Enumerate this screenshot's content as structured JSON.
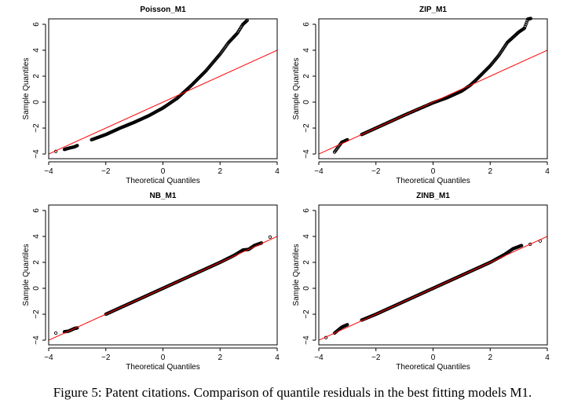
{
  "chart_data": [
    {
      "type": "scatter",
      "title": "Poisson_M1",
      "xlabel": "Theoretical Quantiles",
      "ylabel": "Sample Quantiles",
      "xlim": [
        -4,
        4
      ],
      "ylim": [
        -4.36,
        6.42
      ],
      "xticks": [
        -4,
        -2,
        0,
        2,
        4
      ],
      "yticks": [
        -4,
        -2,
        0,
        2,
        4,
        6
      ],
      "reference_line": {
        "color": "#ff0000",
        "slope": 1,
        "intercept": 0
      },
      "points": [
        [
          -3.75,
          -3.8
        ],
        [
          -3.45,
          -3.65
        ],
        [
          -3.3,
          -3.55
        ],
        [
          -3.1,
          -3.45
        ],
        [
          -3.0,
          -3.35
        ],
        [
          -2.5,
          -2.9
        ],
        [
          -2.0,
          -2.5
        ],
        [
          -1.5,
          -2.0
        ],
        [
          -1.0,
          -1.55
        ],
        [
          -0.5,
          -1.05
        ],
        [
          0,
          -0.45
        ],
        [
          0.5,
          0.3
        ],
        [
          1.0,
          1.3
        ],
        [
          1.5,
          2.4
        ],
        [
          2.0,
          3.7
        ],
        [
          2.3,
          4.6
        ],
        [
          2.6,
          5.3
        ],
        [
          2.8,
          6.0
        ],
        [
          2.95,
          6.3
        ]
      ]
    },
    {
      "type": "scatter",
      "title": "ZIP_M1",
      "xlabel": "Theoretical Quantiles",
      "ylabel": "Sample Quantiles",
      "xlim": [
        -4,
        4
      ],
      "ylim": [
        -4.36,
        6.42
      ],
      "xticks": [
        -4,
        -2,
        0,
        2,
        4
      ],
      "yticks": [
        -4,
        -2,
        0,
        2,
        4,
        6
      ],
      "reference_line": {
        "color": "#ff0000",
        "slope": 1,
        "intercept": 0
      },
      "points": [
        [
          -3.45,
          -3.85
        ],
        [
          -3.2,
          -3.1
        ],
        [
          -3.0,
          -2.9
        ],
        [
          -2.5,
          -2.5
        ],
        [
          -2.0,
          -2.0
        ],
        [
          -1.0,
          -1.0
        ],
        [
          0,
          -0.05
        ],
        [
          0.5,
          0.35
        ],
        [
          1.0,
          0.85
        ],
        [
          1.3,
          1.3
        ],
        [
          1.5,
          1.7
        ],
        [
          2.0,
          2.8
        ],
        [
          2.3,
          3.6
        ],
        [
          2.6,
          4.6
        ],
        [
          2.8,
          5.0
        ],
        [
          3.0,
          5.4
        ],
        [
          3.2,
          5.7
        ],
        [
          3.32,
          6.4
        ],
        [
          3.42,
          6.45
        ]
      ]
    },
    {
      "type": "scatter",
      "title": "NB_M1",
      "xlabel": "Theoretical Quantiles",
      "ylabel": "Sample Quantiles",
      "xlim": [
        -4,
        4
      ],
      "ylim": [
        -4.36,
        6.42
      ],
      "xticks": [
        -4,
        -2,
        0,
        2,
        4
      ],
      "yticks": [
        -4,
        -2,
        0,
        2,
        4,
        6
      ],
      "reference_line": {
        "color": "#ff0000",
        "slope": 1,
        "intercept": 0
      },
      "points": [
        [
          -3.75,
          -3.45
        ],
        [
          -3.45,
          -3.35
        ],
        [
          -3.3,
          -3.3
        ],
        [
          -3.1,
          -3.1
        ],
        [
          -3.0,
          -3.05
        ],
        [
          -2.0,
          -2.0
        ],
        [
          0,
          0
        ],
        [
          2.0,
          2.0
        ],
        [
          2.5,
          2.55
        ],
        [
          2.8,
          2.95
        ],
        [
          3.0,
          3.0
        ],
        [
          3.2,
          3.3
        ],
        [
          3.45,
          3.5
        ],
        [
          3.75,
          3.95
        ]
      ]
    },
    {
      "type": "scatter",
      "title": "ZINB_M1",
      "xlabel": "Theoretical Quantiles",
      "ylabel": "Sample Quantiles",
      "xlim": [
        -4,
        4
      ],
      "ylim": [
        -4.36,
        6.42
      ],
      "xticks": [
        -4,
        -2,
        0,
        2,
        4
      ],
      "yticks": [
        -4,
        -2,
        0,
        2,
        4,
        6
      ],
      "reference_line": {
        "color": "#ff0000",
        "slope": 1,
        "intercept": 0
      },
      "points": [
        [
          -3.75,
          -3.8
        ],
        [
          -3.45,
          -3.45
        ],
        [
          -3.2,
          -3.0
        ],
        [
          -3.0,
          -2.8
        ],
        [
          -2.5,
          -2.45
        ],
        [
          -2.0,
          -2.0
        ],
        [
          0,
          0
        ],
        [
          2.0,
          2.0
        ],
        [
          2.5,
          2.6
        ],
        [
          2.8,
          3.05
        ],
        [
          3.1,
          3.3
        ],
        [
          3.4,
          3.4
        ],
        [
          3.75,
          3.65
        ]
      ]
    }
  ],
  "caption": "Figure 5: Patent citations. Comparison of quantile residuals in the best fitting models M1."
}
